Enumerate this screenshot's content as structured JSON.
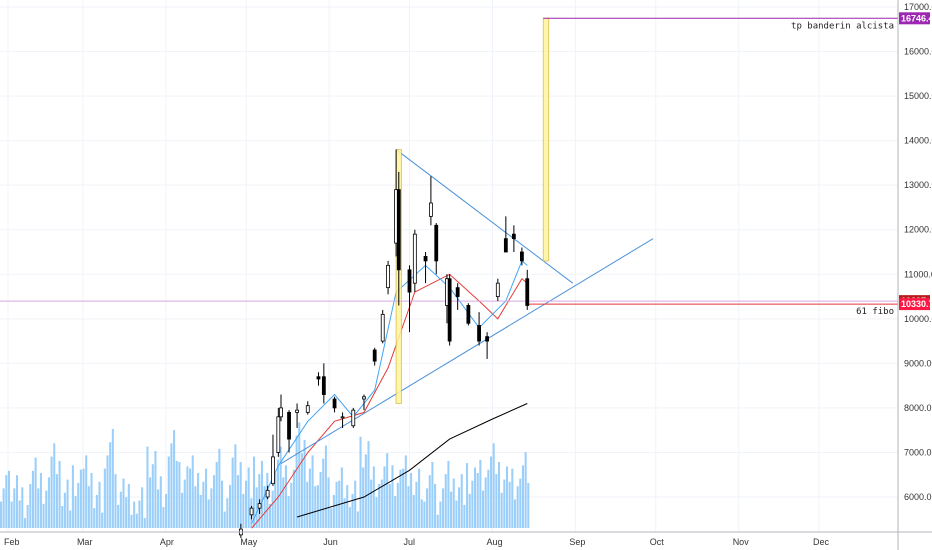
{
  "chart_data": {
    "type": "candlestick",
    "title": "",
    "xlabel": "",
    "ylabel": "",
    "x_tick_labels": [
      "Feb",
      "Mar",
      "Apr",
      "May",
      "Jun",
      "Jul",
      "Aug",
      "Sep",
      "Oct",
      "Nov",
      "Dec"
    ],
    "y_tick_labels": [
      "6000.0",
      "7000.0",
      "8000.0",
      "9000.0",
      "10000.0",
      "11000.0",
      "12000.0",
      "13000.0",
      "14000.0",
      "15000.0",
      "16000.0",
      "17000.0"
    ],
    "ylim": [
      5500,
      17100
    ],
    "grid": true,
    "candles": [
      {
        "x": "2019-04-29",
        "o": 5150,
        "h": 5400,
        "l": 5080,
        "c": 5280
      },
      {
        "x": "2019-05-03",
        "o": 5600,
        "h": 5800,
        "l": 5500,
        "c": 5750
      },
      {
        "x": "2019-05-06",
        "o": 5750,
        "h": 5950,
        "l": 5620,
        "c": 5850
      },
      {
        "x": "2019-05-09",
        "o": 6000,
        "h": 6250,
        "l": 5950,
        "c": 6150
      },
      {
        "x": "2019-05-11",
        "o": 6300,
        "h": 7400,
        "l": 6250,
        "c": 6900
      },
      {
        "x": "2019-05-13",
        "o": 7000,
        "h": 8000,
        "l": 6900,
        "c": 7800
      },
      {
        "x": "2019-05-14",
        "o": 7800,
        "h": 8300,
        "l": 7700,
        "c": 8000
      },
      {
        "x": "2019-05-17",
        "o": 7900,
        "h": 7950,
        "l": 7000,
        "c": 7300
      },
      {
        "x": "2019-05-20",
        "o": 7900,
        "h": 8100,
        "l": 7550,
        "c": 7950
      },
      {
        "x": "2019-05-24",
        "o": 7900,
        "h": 8150,
        "l": 7850,
        "c": 8050
      },
      {
        "x": "2019-05-28",
        "o": 8700,
        "h": 8800,
        "l": 8500,
        "c": 8650
      },
      {
        "x": "2019-05-30",
        "o": 8700,
        "h": 9000,
        "l": 8100,
        "c": 8300
      },
      {
        "x": "2019-06-03",
        "o": 8200,
        "h": 8250,
        "l": 7900,
        "c": 8000
      },
      {
        "x": "2019-06-06",
        "o": 7800,
        "h": 7900,
        "l": 7550,
        "c": 7800
      },
      {
        "x": "2019-06-10",
        "o": 7600,
        "h": 8000,
        "l": 7550,
        "c": 7950
      },
      {
        "x": "2019-06-14",
        "o": 8200,
        "h": 8300,
        "l": 7950,
        "c": 8250
      },
      {
        "x": "2019-06-18",
        "o": 9300,
        "h": 9350,
        "l": 8950,
        "c": 9050
      },
      {
        "x": "2019-06-21",
        "o": 9500,
        "h": 10200,
        "l": 9450,
        "c": 10100
      },
      {
        "x": "2019-06-23",
        "o": 10700,
        "h": 11300,
        "l": 10550,
        "c": 11200
      },
      {
        "x": "2019-06-26",
        "o": 11700,
        "h": 13800,
        "l": 11400,
        "c": 12900
      },
      {
        "x": "2019-06-27",
        "o": 12900,
        "h": 13300,
        "l": 10300,
        "c": 11100
      },
      {
        "x": "2019-07-01",
        "o": 11100,
        "h": 11200,
        "l": 9700,
        "c": 10600
      },
      {
        "x": "2019-07-03",
        "o": 10800,
        "h": 12000,
        "l": 10600,
        "c": 11900
      },
      {
        "x": "2019-07-07",
        "o": 11400,
        "h": 11500,
        "l": 10800,
        "c": 11300
      },
      {
        "x": "2019-07-09",
        "o": 12300,
        "h": 13200,
        "l": 12100,
        "c": 12600
      },
      {
        "x": "2019-07-11",
        "o": 12100,
        "h": 12150,
        "l": 11000,
        "c": 11300
      },
      {
        "x": "2019-07-15",
        "o": 10300,
        "h": 11000,
        "l": 9900,
        "c": 10900
      },
      {
        "x": "2019-07-16",
        "o": 10900,
        "h": 11000,
        "l": 9400,
        "c": 9500
      },
      {
        "x": "2019-07-19",
        "o": 10700,
        "h": 10800,
        "l": 10200,
        "c": 10500
      },
      {
        "x": "2019-07-23",
        "o": 10300,
        "h": 10350,
        "l": 9850,
        "c": 9900
      },
      {
        "x": "2019-07-27",
        "o": 9850,
        "h": 10150,
        "l": 9400,
        "c": 9500
      },
      {
        "x": "2019-07-30",
        "o": 9600,
        "h": 9700,
        "l": 9100,
        "c": 9500
      },
      {
        "x": "2019-08-03",
        "o": 10500,
        "h": 10900,
        "l": 10400,
        "c": 10800
      },
      {
        "x": "2019-08-06",
        "o": 11800,
        "h": 12300,
        "l": 11600,
        "c": 11500
      },
      {
        "x": "2019-08-09",
        "o": 11900,
        "h": 12100,
        "l": 11500,
        "c": 11800
      },
      {
        "x": "2019-08-12",
        "o": 11500,
        "h": 11600,
        "l": 11200,
        "c": 11300
      },
      {
        "x": "2019-08-14",
        "o": 10900,
        "h": 11100,
        "l": 10200,
        "c": 10300
      }
    ],
    "volume_heights_relative": [
      0.2,
      0.4,
      0.15,
      0.6,
      0.3,
      0.75,
      0.2,
      0.35,
      0.5,
      0.1,
      0.9,
      0.35,
      0.2,
      0.15,
      0.7,
      0.25,
      0.95,
      0.4,
      0.5,
      0.3,
      0.6,
      0.25,
      0.8,
      0.45,
      0.55,
      0.3,
      0.7,
      0.35,
      1.0,
      0.5,
      0.65,
      0.3,
      0.45,
      0.25,
      0.85,
      0.4,
      0.6,
      0.35,
      0.5,
      0.3,
      0.4,
      0.2,
      0.55,
      0.35,
      0.45,
      0.5,
      0.75,
      0.4,
      0.3,
      0.55
    ],
    "ma_short": [
      [
        "2019-05-03",
        5400
      ],
      [
        "2019-05-13",
        6700
      ],
      [
        "2019-05-24",
        7700
      ],
      [
        "2019-06-03",
        8300
      ],
      [
        "2019-06-10",
        7800
      ],
      [
        "2019-06-18",
        8400
      ],
      [
        "2019-06-26",
        10600
      ],
      [
        "2019-07-07",
        11200
      ],
      [
        "2019-07-16",
        10700
      ],
      [
        "2019-07-27",
        9800
      ],
      [
        "2019-08-06",
        10400
      ],
      [
        "2019-08-12",
        11300
      ],
      [
        "2019-08-14",
        11200
      ]
    ],
    "ma_medium": [
      [
        "2019-05-03",
        5300
      ],
      [
        "2019-05-13",
        6000
      ],
      [
        "2019-05-24",
        7000
      ],
      [
        "2019-06-03",
        7700
      ],
      [
        "2019-06-14",
        7900
      ],
      [
        "2019-06-23",
        8900
      ],
      [
        "2019-07-03",
        10600
      ],
      [
        "2019-07-16",
        11000
      ],
      [
        "2019-07-27",
        10400
      ],
      [
        "2019-08-03",
        10000
      ],
      [
        "2019-08-12",
        10900
      ],
      [
        "2019-08-14",
        10800
      ]
    ],
    "ma_long": [
      [
        "2019-05-20",
        5550
      ],
      [
        "2019-06-14",
        6000
      ],
      [
        "2019-07-01",
        6600
      ],
      [
        "2019-07-16",
        7300
      ],
      [
        "2019-08-01",
        7750
      ],
      [
        "2019-08-14",
        8100
      ]
    ],
    "annotations": {
      "target_line": {
        "value": 16746.4,
        "label": "tp banderin alcista",
        "badge": "16746.4"
      },
      "fibo_line": {
        "value": 10330.7,
        "label": "61 fibo",
        "badge": "10330.7"
      },
      "current_price_line": {
        "value": 10397.1,
        "badge": "10397.1"
      },
      "triangle_upper": [
        [
          "2019-06-26",
          13800
        ],
        [
          "2019-08-31",
          10800
        ]
      ],
      "triangle_lower": [
        [
          "2019-05-14",
          6750
        ],
        [
          "2019-09-30",
          11800
        ]
      ],
      "flag_pole": [
        [
          "2019-06-26",
          8100
        ],
        [
          "2019-06-28",
          13800
        ]
      ],
      "projection_pole": [
        [
          "2019-08-20",
          11300
        ],
        [
          "2019-08-22",
          16746.4
        ]
      ]
    },
    "colors": {
      "volume": "#90caf9",
      "ma_short": "#42a5f5",
      "ma_medium": "#e53935",
      "ma_long": "#000000",
      "trendline": "#4a90d9",
      "target": "#9c27b0",
      "fibo": "#e53935",
      "current": "#b71c1c",
      "pole_fill": "#fff59d",
      "pole_stroke": "#e0c14a"
    }
  }
}
